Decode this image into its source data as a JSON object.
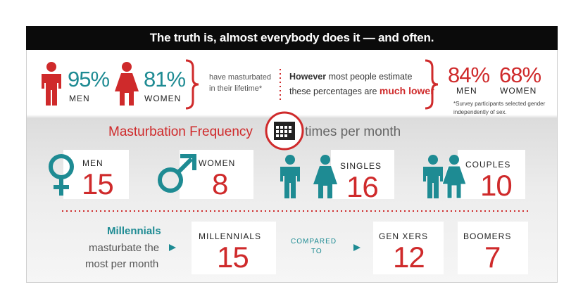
{
  "banner": "The truth is, almost everybody does it — and often.",
  "lifetime": {
    "stats": [
      {
        "value": "95%",
        "label": "MEN"
      },
      {
        "value": "81%",
        "label": "WOMEN"
      }
    ],
    "note": [
      "have masturbated",
      "in their lifetime*"
    ],
    "estimate": {
      "line1": {
        "lead": "However",
        "rest": "most people estimate"
      },
      "line2": {
        "rest": "these percentages are",
        "emph": "much lower"
      }
    },
    "estimates": [
      {
        "value": "84%",
        "label": "MEN"
      },
      {
        "value": "68%",
        "label": "WOMEN"
      }
    ],
    "footnote": [
      "*Survey participants selected gender",
      "independently of sex."
    ]
  },
  "frequency": {
    "title": "Masturbation Frequency",
    "unit": "times per month",
    "groups": [
      {
        "label": "MEN",
        "value": 15
      },
      {
        "label": "WOMEN",
        "value": 8
      },
      {
        "label": "SINGLES",
        "value": 16
      },
      {
        "label": "COUPLES",
        "value": 10
      }
    ]
  },
  "generations": {
    "heading": "Millennials",
    "caption": [
      "masturbate the",
      "most per month"
    ],
    "compared": [
      "COMPARED",
      "TO"
    ],
    "groups": [
      {
        "label": "MILLENNIALS",
        "value": 15
      },
      {
        "label": "GEN XERS",
        "value": 12
      },
      {
        "label": "BOOMERS",
        "value": 7
      }
    ]
  }
}
